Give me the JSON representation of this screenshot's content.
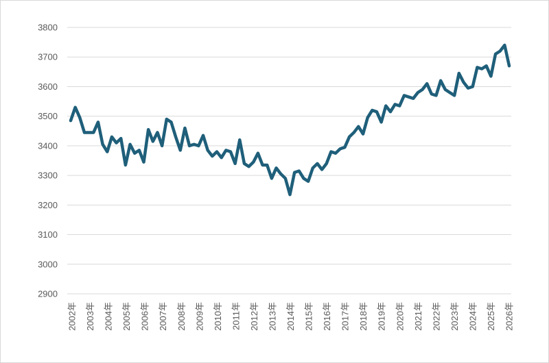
{
  "chart_data": {
    "type": "line",
    "title": "",
    "xlabel": "",
    "ylabel": "",
    "ylim": [
      2900,
      3800
    ],
    "yticks": [
      2900,
      3000,
      3100,
      3200,
      3300,
      3400,
      3500,
      3600,
      3700,
      3800
    ],
    "grid": true,
    "legend": "none",
    "color": "#1f5f7a",
    "x_labels": [
      "2002年",
      "2003年",
      "2004年",
      "2005年",
      "2006年",
      "2007年",
      "2008年",
      "2009年",
      "2010年",
      "2011年",
      "2012年",
      "2013年",
      "2014年",
      "2015年",
      "2016年",
      "2017年",
      "2018年",
      "2019年",
      "2020年",
      "2021年",
      "2022年",
      "2023年",
      "2024年",
      "2025年",
      "2026年"
    ],
    "series": [
      {
        "values": [
          3485,
          3530,
          3495,
          3445,
          3445,
          3445,
          3480,
          3405,
          3380,
          3430,
          3410,
          3425,
          3335,
          3405,
          3375,
          3385,
          3345,
          3455,
          3415,
          3445,
          3400,
          3490,
          3480,
          3430,
          3385,
          3460,
          3400,
          3405,
          3400,
          3435,
          3385,
          3365,
          3380,
          3360,
          3385,
          3380,
          3340,
          3420,
          3340,
          3330,
          3345,
          3375,
          3335,
          3335,
          3290,
          3325,
          3305,
          3290,
          3235,
          3310,
          3315,
          3290,
          3280,
          3325,
          3340,
          3320,
          3340,
          3380,
          3375,
          3390,
          3395,
          3430,
          3445,
          3465,
          3440,
          3495,
          3520,
          3515,
          3480,
          3535,
          3515,
          3540,
          3535,
          3570,
          3565,
          3560,
          3580,
          3590,
          3610,
          3575,
          3570,
          3620,
          3590,
          3580,
          3570,
          3645,
          3615,
          3595,
          3600,
          3665,
          3660,
          3670,
          3635,
          3710,
          3720,
          3740,
          3670
        ]
      }
    ]
  }
}
